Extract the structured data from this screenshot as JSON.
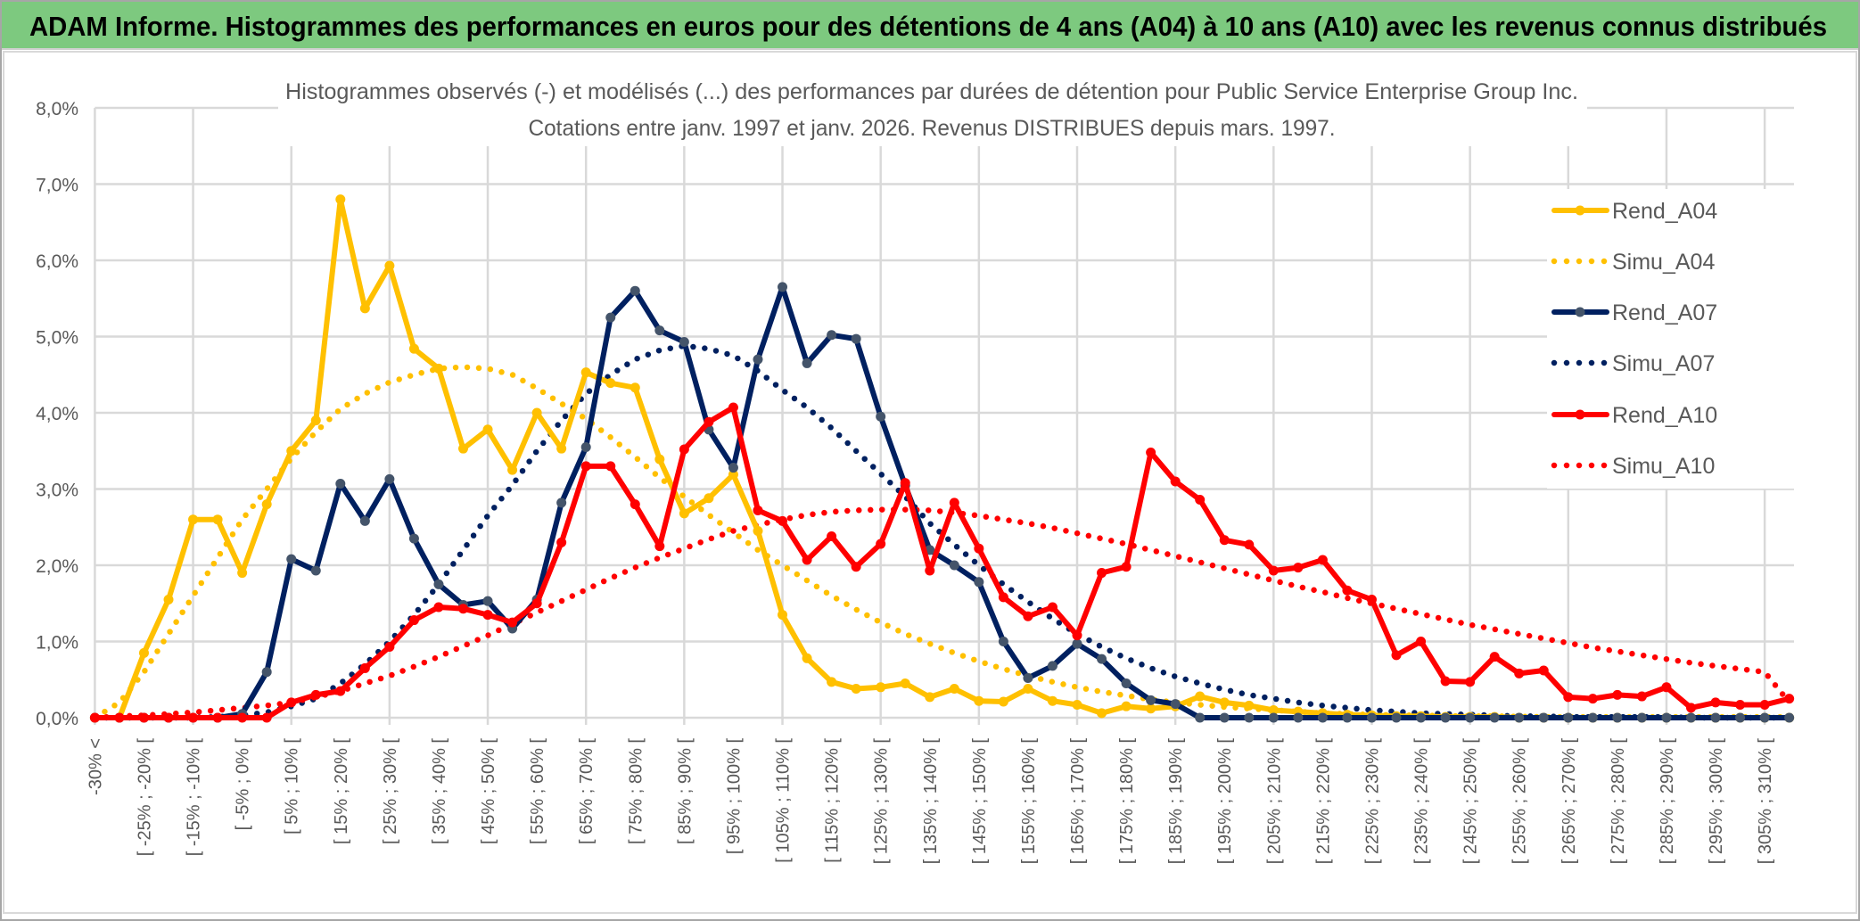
{
  "header": {
    "title": "ADAM Informe. Histogrammes des performances en euros pour des détentions de 4 ans (A04) à 10 ans (A10) avec les revenus connus distribués",
    "background_color": "#7DC97F"
  },
  "chart_data": {
    "type": "line",
    "title": "Histogrammes observés (-) et modélisés (...) des performances par durées de détention pour Public Service Enterprise Group Inc.",
    "subtitle": "Cotations entre janv. 1997 et janv. 2026. Revenus DISTRIBUES depuis mars. 1997.",
    "xlabel": "",
    "ylabel": "",
    "ylim": [
      0,
      8
    ],
    "y_unit": "%",
    "y_tick_labels": [
      "0,0%",
      "1,0%",
      "2,0%",
      "3,0%",
      "4,0%",
      "5,0%",
      "6,0%",
      "7,0%",
      "8,0%"
    ],
    "x_tick_labels": [
      "-30% <",
      "[ -25% ; -20% [",
      "[ -15% ; -10% [",
      "[ -5% ; 0% [",
      "[ 5% ; 10% [",
      "[ 15% ; 20% [",
      "[ 25% ; 30% [",
      "[ 35% ; 40% [",
      "[ 45% ; 50% [",
      "[ 55% ; 60% [",
      "[ 65% ; 70% [",
      "[ 75% ; 80% [",
      "[ 85% ; 90% [",
      "[ 95% ; 100% [",
      "[ 105% ; 110% [",
      "[ 115% ; 120% [",
      "[ 125% ; 130% [",
      "[ 135% ; 140% [",
      "[ 145% ; 150% [",
      "[ 155% ; 160% [",
      "[ 165% ; 170% [",
      "[ 175% ; 180% [",
      "[ 185% ; 190% [",
      "[ 195% ; 200% [",
      "[ 205% ; 210% [",
      "[ 215% ; 220% [",
      "[ 225% ; 230% [",
      "[ 235% ; 240% [",
      "[ 245% ; 250% [",
      "[ 255% ; 260% [",
      "[ 265% ; 270% [",
      "[ 275% ; 280% [",
      "[ 285% ; 290% [",
      "[ 295% ; 300% [",
      "[ 305% ; 310% ["
    ],
    "grid": true,
    "legend_position": "right",
    "series": [
      {
        "name": "Rend_A04",
        "style": "solid-markers",
        "color": "#FFC000",
        "marker_color": "#FFC000",
        "values": [
          0,
          0,
          0.85,
          1.55,
          2.6,
          2.6,
          1.9,
          2.8,
          3.5,
          3.9,
          6.8,
          5.37,
          5.93,
          4.84,
          4.58,
          3.53,
          3.78,
          3.25,
          4.0,
          3.53,
          4.53,
          4.39,
          4.33,
          3.39,
          2.68,
          2.88,
          3.19,
          2.45,
          1.35,
          0.78,
          0.47,
          0.38,
          0.4,
          0.45,
          0.27,
          0.38,
          0.22,
          0.21,
          0.38,
          0.22,
          0.17,
          0.06,
          0.15,
          0.12,
          0.15,
          0.28,
          0.2,
          0.16,
          0.1,
          0.08,
          0.06,
          0.04,
          0.03,
          0.02,
          0.02,
          0.01,
          0.01,
          0.01,
          0,
          0,
          0,
          0,
          0,
          0,
          0,
          0,
          0,
          0,
          0,
          0
        ]
      },
      {
        "name": "Simu_A04",
        "style": "dotted",
        "color": "#FFC000",
        "values": [
          0,
          0.2,
          0.6,
          1.1,
          1.6,
          2.1,
          2.6,
          3.0,
          3.4,
          3.75,
          4.05,
          4.25,
          4.4,
          4.5,
          4.58,
          4.6,
          4.58,
          4.5,
          4.32,
          4.12,
          3.92,
          3.68,
          3.42,
          3.15,
          2.9,
          2.66,
          2.43,
          2.2,
          2.0,
          1.8,
          1.6,
          1.42,
          1.25,
          1.1,
          0.97,
          0.85,
          0.74,
          0.64,
          0.55,
          0.47,
          0.4,
          0.34,
          0.29,
          0.24,
          0.2,
          0.17,
          0.14,
          0.12,
          0.1,
          0.08,
          0.06,
          0.05,
          0.04,
          0.035,
          0.03,
          0.025,
          0.02,
          0.02,
          0.015,
          0.01,
          0.01,
          0.01,
          0.01,
          0.01,
          0.01,
          0.01,
          0.01,
          0.01,
          0.01,
          0.01
        ]
      },
      {
        "name": "Rend_A07",
        "style": "solid-markers",
        "color": "#002060",
        "marker_color": "#44546A",
        "values": [
          0,
          0,
          0,
          0,
          0,
          0,
          0.05,
          0.6,
          2.08,
          1.93,
          3.07,
          2.58,
          3.13,
          2.35,
          1.75,
          1.48,
          1.53,
          1.17,
          1.55,
          2.82,
          3.55,
          5.25,
          5.6,
          5.08,
          4.93,
          3.78,
          3.28,
          4.7,
          5.65,
          4.65,
          5.02,
          4.97,
          3.95,
          3.05,
          2.2,
          2.0,
          1.78,
          1.0,
          0.52,
          0.68,
          0.97,
          0.77,
          0.45,
          0.23,
          0.18,
          0,
          0,
          0,
          0,
          0,
          0,
          0,
          0,
          0,
          0,
          0,
          0,
          0,
          0,
          0,
          0,
          0,
          0,
          0,
          0,
          0,
          0,
          0,
          0,
          0
        ]
      },
      {
        "name": "Simu_A07",
        "style": "dotted",
        "color": "#002060",
        "values": [
          0,
          0,
          0,
          0,
          0,
          0.01,
          0.03,
          0.07,
          0.15,
          0.25,
          0.45,
          0.7,
          1.0,
          1.35,
          1.75,
          2.2,
          2.65,
          3.05,
          3.5,
          3.9,
          4.25,
          4.5,
          4.7,
          4.82,
          4.88,
          4.84,
          4.75,
          4.55,
          4.3,
          4.07,
          3.8,
          3.5,
          3.2,
          2.9,
          2.55,
          2.27,
          2.0,
          1.75,
          1.52,
          1.3,
          1.1,
          0.93,
          0.78,
          0.65,
          0.54,
          0.45,
          0.37,
          0.3,
          0.25,
          0.2,
          0.16,
          0.13,
          0.1,
          0.08,
          0.06,
          0.05,
          0.04,
          0.03,
          0.02,
          0.02,
          0.01,
          0.01,
          0.01,
          0.01,
          0.01,
          0,
          0,
          0,
          0,
          0
        ]
      },
      {
        "name": "Rend_A10",
        "style": "solid-markers",
        "color": "#FF0000",
        "marker_color": "#FF0000",
        "values": [
          0,
          0,
          0,
          0,
          0,
          0,
          0,
          0,
          0.2,
          0.3,
          0.35,
          0.65,
          0.93,
          1.28,
          1.45,
          1.43,
          1.35,
          1.25,
          1.5,
          2.3,
          3.3,
          3.3,
          2.8,
          2.25,
          3.52,
          3.88,
          4.07,
          2.72,
          2.58,
          2.07,
          2.38,
          1.98,
          2.28,
          3.08,
          1.93,
          2.82,
          2.22,
          1.58,
          1.33,
          1.45,
          1.08,
          1.9,
          1.98,
          3.48,
          3.1,
          2.86,
          2.33,
          2.27,
          1.93,
          1.97,
          2.07,
          1.67,
          1.55,
          0.82,
          1.0,
          0.48,
          0.47,
          0.8,
          0.58,
          0.62,
          0.27,
          0.25,
          0.3,
          0.28,
          0.4,
          0.13,
          0.2,
          0.17,
          0.17,
          0.25
        ]
      },
      {
        "name": "Simu_A10",
        "style": "dotted",
        "color": "#FF0000",
        "values": [
          0,
          0.02,
          0.03,
          0.05,
          0.07,
          0.1,
          0.13,
          0.16,
          0.2,
          0.27,
          0.35,
          0.45,
          0.55,
          0.67,
          0.8,
          0.94,
          1.08,
          1.23,
          1.38,
          1.53,
          1.68,
          1.83,
          1.97,
          2.1,
          2.22,
          2.34,
          2.45,
          2.53,
          2.6,
          2.66,
          2.7,
          2.72,
          2.73,
          2.73,
          2.72,
          2.69,
          2.65,
          2.6,
          2.55,
          2.49,
          2.42,
          2.35,
          2.28,
          2.2,
          2.12,
          2.04,
          1.96,
          1.88,
          1.8,
          1.72,
          1.65,
          1.57,
          1.5,
          1.43,
          1.36,
          1.29,
          1.22,
          1.16,
          1.1,
          1.04,
          0.98,
          0.92,
          0.87,
          0.82,
          0.77,
          0.72,
          0.68,
          0.64,
          0.6,
          0.2
        ]
      }
    ]
  }
}
